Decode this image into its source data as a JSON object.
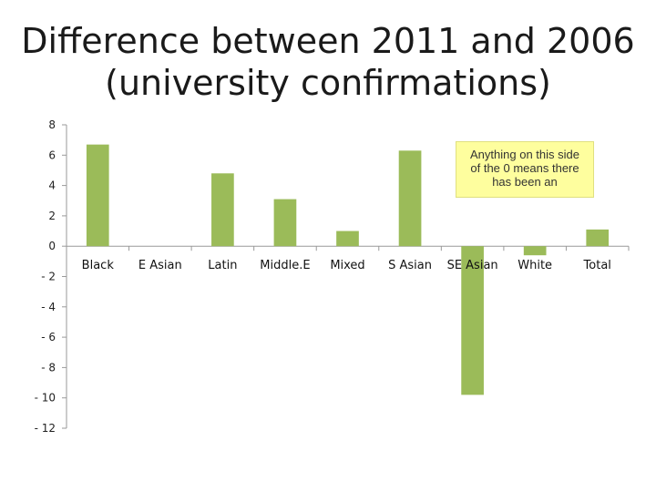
{
  "chart_data": {
    "type": "bar",
    "title_line1": "Difference between 2011 and 2006",
    "title_line2": "(university confirmations)",
    "categories": [
      "Black",
      "E Asian",
      "Latin",
      "Middle.E",
      "Mixed",
      "S Asian",
      "SE Asian",
      "White",
      "Total"
    ],
    "values": [
      6.7,
      0,
      4.8,
      3.1,
      1.0,
      6.3,
      -9.8,
      -0.6,
      1.1
    ],
    "ylim": [
      -12,
      8
    ],
    "yticks": [
      8,
      6,
      4,
      2,
      0,
      -2,
      -4,
      -6,
      -8,
      -10,
      -12
    ],
    "ytick_labels": [
      "8",
      "6",
      "4",
      "2",
      "0",
      "- 2",
      "- 4",
      "- 6",
      "- 8",
      "- 10",
      "- 12"
    ],
    "bar_color": "#9bbb59",
    "annotation": "Anything on this side of the 0 means there has been an",
    "grid": false,
    "legend": "none"
  }
}
